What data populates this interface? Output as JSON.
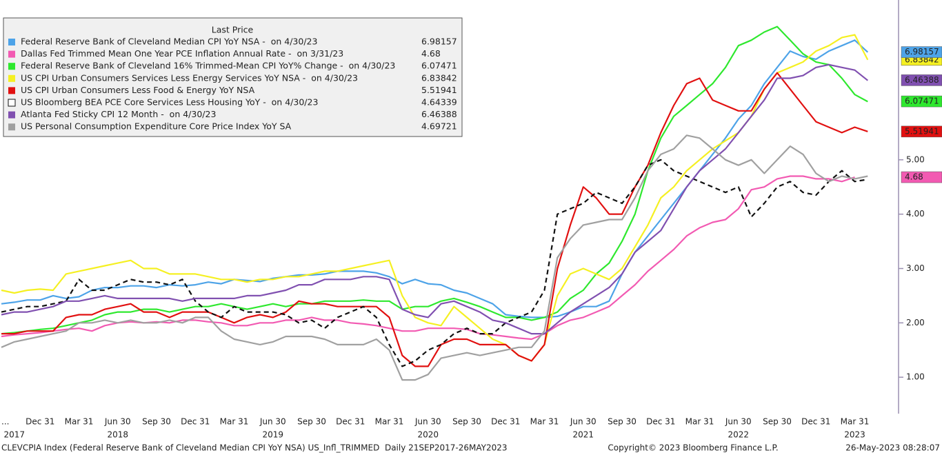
{
  "chart_data": {
    "type": "line",
    "legend_title": "Last Price",
    "categories": [
      "...",
      null,
      null,
      "Dec 31",
      null,
      null,
      "Mar 31",
      null,
      null,
      "Jun 30",
      null,
      null,
      "Sep 30",
      null,
      null,
      "Dec 31",
      null,
      null,
      "Mar 31",
      null,
      null,
      "Jun 30",
      null,
      null,
      "Sep 30",
      null,
      null,
      "Dec 31",
      null,
      null,
      "Mar 31",
      null,
      null,
      "Jun 30",
      null,
      null,
      "Sep 30",
      null,
      null,
      "Dec 31",
      null,
      null,
      "Mar 31",
      null,
      null,
      "Jun 30",
      null,
      null,
      "Sep 30",
      null,
      null,
      "Dec 31",
      null,
      null,
      "Mar 31",
      null,
      null,
      "Jun 30",
      null,
      null,
      "Sep 30",
      null,
      null,
      "Dec 31",
      null,
      null,
      "Mar 31",
      null
    ],
    "years": [
      null,
      "2017",
      null,
      null,
      null,
      null,
      null,
      null,
      null,
      "2018",
      null,
      null,
      null,
      null,
      null,
      null,
      null,
      null,
      null,
      null,
      null,
      "2019",
      null,
      null,
      null,
      null,
      null,
      null,
      null,
      null,
      null,
      null,
      null,
      "2020",
      null,
      null,
      null,
      null,
      null,
      null,
      null,
      null,
      null,
      null,
      null,
      "2021",
      null,
      null,
      null,
      null,
      null,
      null,
      null,
      null,
      null,
      null,
      null,
      "2022",
      null,
      null,
      null,
      null,
      null,
      null,
      null,
      null,
      "2023",
      null
    ],
    "ylim": [
      0.33,
      7.94
    ],
    "yticks": [
      {
        "value": 1,
        "label": "1.00"
      },
      {
        "value": 2,
        "label": "2.00"
      },
      {
        "value": 3,
        "label": "3.00"
      },
      {
        "value": 4,
        "label": "4.00"
      },
      {
        "value": 5,
        "label": "5.00"
      }
    ],
    "series": [
      {
        "name": "Federal Reserve Bank of Cleveland Median CPI YoY NSA -  on 4/30/23",
        "last_price": 6.98157,
        "color": "#4da3e8",
        "dash": false,
        "end_label": true,
        "values": [
          2.35,
          2.38,
          2.42,
          2.42,
          2.5,
          2.45,
          2.48,
          2.6,
          2.65,
          2.65,
          2.68,
          2.68,
          2.65,
          2.7,
          2.68,
          2.7,
          2.75,
          2.72,
          2.8,
          2.78,
          2.76,
          2.82,
          2.85,
          2.88,
          2.88,
          2.9,
          2.95,
          2.95,
          2.95,
          2.92,
          2.85,
          2.72,
          2.8,
          2.72,
          2.7,
          2.6,
          2.55,
          2.45,
          2.35,
          2.15,
          2.12,
          2.1,
          2.1,
          2.12,
          2.2,
          2.3,
          2.3,
          2.4,
          2.9,
          3.3,
          3.6,
          3.9,
          4.2,
          4.5,
          4.8,
          5.1,
          5.4,
          5.75,
          6.0,
          6.4,
          6.7,
          7.0,
          6.9,
          6.85,
          7.0,
          7.1,
          7.2,
          6.98
        ]
      },
      {
        "name": "Dallas Fed Trimmed Mean One Year PCE Inflation Annual Rate -  on 3/31/23",
        "last_price": 4.68,
        "color": "#f25ab2",
        "dash": false,
        "end_label": true,
        "values": [
          1.75,
          1.78,
          1.8,
          1.82,
          1.85,
          1.88,
          1.9,
          1.85,
          1.95,
          2.0,
          2.02,
          2.0,
          2.02,
          2.0,
          2.05,
          2.05,
          2.02,
          2.0,
          1.95,
          1.95,
          2.0,
          2.0,
          2.05,
          2.05,
          2.1,
          2.05,
          2.05,
          2.0,
          1.98,
          1.95,
          1.9,
          1.85,
          1.85,
          1.9,
          1.9,
          1.9,
          1.88,
          1.8,
          1.78,
          1.75,
          1.72,
          1.7,
          1.8,
          1.95,
          2.05,
          2.1,
          2.2,
          2.3,
          2.5,
          2.7,
          2.95,
          3.15,
          3.35,
          3.6,
          3.75,
          3.85,
          3.9,
          4.1,
          4.45,
          4.5,
          4.65,
          4.7,
          4.7,
          4.65,
          4.65,
          4.6,
          4.68,
          null
        ]
      },
      {
        "name": "Federal Reserve Bank of Cleveland 16% Trimmed-Mean CPI YoY% Change -  on 4/30/23",
        "last_price": 6.07471,
        "color": "#2ee82e",
        "dash": false,
        "end_label": true,
        "values": [
          1.8,
          1.82,
          1.85,
          1.88,
          1.9,
          1.95,
          2.0,
          2.05,
          2.15,
          2.2,
          2.2,
          2.25,
          2.25,
          2.2,
          2.25,
          2.3,
          2.3,
          2.35,
          2.3,
          2.25,
          2.3,
          2.35,
          2.3,
          2.35,
          2.35,
          2.4,
          2.4,
          2.4,
          2.42,
          2.4,
          2.4,
          2.25,
          2.3,
          2.3,
          2.4,
          2.45,
          2.38,
          2.3,
          2.2,
          2.1,
          2.1,
          2.05,
          2.1,
          2.2,
          2.45,
          2.6,
          2.9,
          3.1,
          3.5,
          4.0,
          4.8,
          5.4,
          5.8,
          6.0,
          6.2,
          6.4,
          6.7,
          7.1,
          7.2,
          7.35,
          7.45,
          7.2,
          6.95,
          6.8,
          6.75,
          6.5,
          6.2,
          6.07
        ]
      },
      {
        "name": "US CPI Urban Consumers Services Less Energy Services YoY NSA -  on 4/30/23",
        "last_price": 6.83842,
        "color": "#f5f022",
        "dash": false,
        "end_label": true,
        "values": [
          2.6,
          2.55,
          2.6,
          2.62,
          2.6,
          2.9,
          2.95,
          3.0,
          3.05,
          3.1,
          3.15,
          3.0,
          3.0,
          2.9,
          2.9,
          2.9,
          2.85,
          2.8,
          2.8,
          2.75,
          2.8,
          2.8,
          2.85,
          2.85,
          2.9,
          2.95,
          2.95,
          3.0,
          3.05,
          3.1,
          3.15,
          2.5,
          2.1,
          2.0,
          1.95,
          2.3,
          2.1,
          1.9,
          1.7,
          1.6,
          1.4,
          1.3,
          1.6,
          2.5,
          2.9,
          3.0,
          2.9,
          2.8,
          3.0,
          3.4,
          3.8,
          4.3,
          4.5,
          4.8,
          5.0,
          5.2,
          5.35,
          5.5,
          5.8,
          6.3,
          6.6,
          6.7,
          6.8,
          7.0,
          7.1,
          7.25,
          7.3,
          6.84
        ]
      },
      {
        "name": "US CPI Urban Consumers Less Food & Energy YoY NSA",
        "last_price": 5.51941,
        "color": "#e11010",
        "dash": false,
        "end_label": true,
        "values": [
          1.8,
          1.8,
          1.85,
          1.85,
          1.85,
          2.1,
          2.15,
          2.15,
          2.25,
          2.3,
          2.35,
          2.2,
          2.2,
          2.1,
          2.2,
          2.2,
          2.2,
          2.1,
          2.0,
          2.1,
          2.15,
          2.1,
          2.2,
          2.4,
          2.35,
          2.35,
          2.3,
          2.3,
          2.3,
          2.3,
          2.1,
          1.4,
          1.2,
          1.2,
          1.6,
          1.7,
          1.7,
          1.6,
          1.6,
          1.6,
          1.4,
          1.3,
          1.6,
          3.0,
          3.8,
          4.5,
          4.3,
          4.0,
          4.0,
          4.5,
          4.9,
          5.5,
          6.0,
          6.4,
          6.5,
          6.1,
          6.0,
          5.9,
          5.9,
          6.3,
          6.6,
          6.3,
          6.0,
          5.7,
          5.6,
          5.5,
          5.6,
          5.52
        ]
      },
      {
        "name": "US Bloomberg BEA PCE Core Services Less Housing YoY -  on 4/30/23",
        "last_price": 4.64339,
        "color": "#111111",
        "dash": true,
        "end_label": false,
        "values": [
          2.2,
          2.25,
          2.3,
          2.3,
          2.35,
          2.4,
          2.8,
          2.6,
          2.6,
          2.7,
          2.8,
          2.75,
          2.75,
          2.7,
          2.8,
          2.4,
          2.2,
          2.1,
          2.3,
          2.2,
          2.2,
          2.2,
          2.15,
          2.0,
          2.05,
          1.9,
          2.1,
          2.2,
          2.3,
          2.1,
          1.6,
          1.2,
          1.3,
          1.5,
          1.6,
          1.8,
          1.9,
          1.8,
          1.8,
          2.0,
          2.1,
          2.2,
          2.6,
          4.0,
          4.1,
          4.2,
          4.4,
          4.3,
          4.2,
          4.5,
          4.9,
          5.0,
          4.8,
          4.7,
          4.6,
          4.5,
          4.4,
          4.5,
          3.95,
          4.2,
          4.5,
          4.6,
          4.4,
          4.35,
          4.6,
          4.8,
          4.6,
          4.64
        ]
      },
      {
        "name": "Atlanta Fed Sticky CPI 12 Month -  on 4/30/23",
        "last_price": 6.46388,
        "color": "#8050b0",
        "dash": false,
        "end_label": true,
        "values": [
          2.15,
          2.2,
          2.2,
          2.25,
          2.3,
          2.4,
          2.4,
          2.45,
          2.5,
          2.45,
          2.45,
          2.45,
          2.45,
          2.45,
          2.4,
          2.45,
          2.45,
          2.45,
          2.45,
          2.5,
          2.5,
          2.55,
          2.6,
          2.7,
          2.7,
          2.8,
          2.8,
          2.8,
          2.85,
          2.85,
          2.8,
          2.25,
          2.15,
          2.1,
          2.35,
          2.4,
          2.3,
          2.2,
          2.05,
          2.0,
          1.9,
          1.8,
          1.8,
          2.0,
          2.2,
          2.35,
          2.5,
          2.65,
          2.9,
          3.3,
          3.5,
          3.7,
          4.1,
          4.5,
          4.8,
          5.0,
          5.2,
          5.5,
          5.8,
          6.1,
          6.5,
          6.5,
          6.55,
          6.7,
          6.75,
          6.7,
          6.65,
          6.46
        ]
      },
      {
        "name": "US Personal Consumption Expenditure Core Price Index YoY SA",
        "last_price": 4.69721,
        "color": "#a0a0a0",
        "dash": false,
        "end_label": false,
        "values": [
          1.55,
          1.65,
          1.7,
          1.75,
          1.8,
          1.85,
          2.0,
          2.0,
          2.05,
          2.0,
          2.05,
          2.0,
          2.0,
          2.05,
          2.0,
          2.1,
          2.1,
          1.85,
          1.7,
          1.65,
          1.6,
          1.65,
          1.75,
          1.75,
          1.75,
          1.7,
          1.6,
          1.6,
          1.6,
          1.7,
          1.5,
          0.95,
          0.95,
          1.05,
          1.35,
          1.4,
          1.45,
          1.4,
          1.45,
          1.5,
          1.55,
          1.55,
          1.85,
          3.2,
          3.55,
          3.8,
          3.85,
          3.9,
          3.9,
          4.3,
          4.8,
          5.1,
          5.2,
          5.45,
          5.4,
          5.2,
          5.0,
          4.9,
          5.0,
          4.75,
          5.0,
          5.25,
          5.1,
          4.75,
          4.6,
          4.7,
          4.65,
          4.7
        ]
      }
    ],
    "footer_left": "CLEVCPIA Index (Federal Reserve Bank of Cleveland Median CPI YoY NSA) US_Infl_TRIMMED  Daily 21SEP2017-26MAY2023",
    "footer_center": "Copyright© 2023 Bloomberg Finance L.P.",
    "footer_right": "26-May-2023 08:28:07"
  }
}
